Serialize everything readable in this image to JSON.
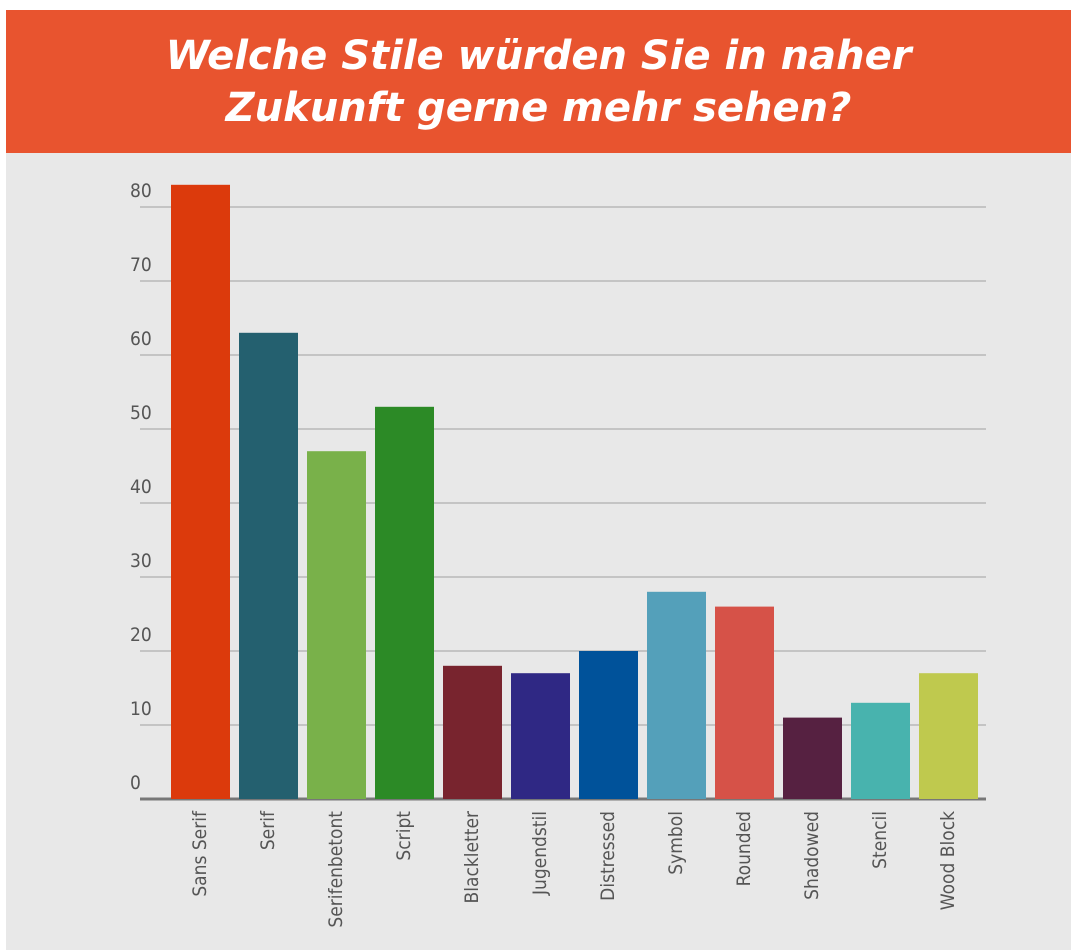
{
  "chart_data": {
    "type": "bar",
    "title": "Welche Stile würden Sie in naher Zukunft gerne mehr sehen?",
    "categories": [
      "Sans Serif",
      "Serif",
      "Serifenbetont",
      "Script",
      "Blackletter",
      "Jugendstil",
      "Distressed",
      "Symbol",
      "Rounded",
      "Shadowed",
      "Stencil",
      "Wood Block"
    ],
    "values": [
      83,
      63,
      47,
      53,
      18,
      17,
      20,
      28,
      26,
      11,
      13,
      17
    ],
    "colors": [
      "#dc3a0c",
      "#24606f",
      "#79b14a",
      "#2c8a26",
      "#78242e",
      "#2f2884",
      "#00529a",
      "#54a0ba",
      "#d65248",
      "#562141",
      "#48b3ae",
      "#bfc94e"
    ],
    "ylim": [
      0,
      85
    ],
    "yticks": [
      0,
      10,
      20,
      30,
      40,
      50,
      60,
      70,
      80
    ],
    "grid": true
  }
}
